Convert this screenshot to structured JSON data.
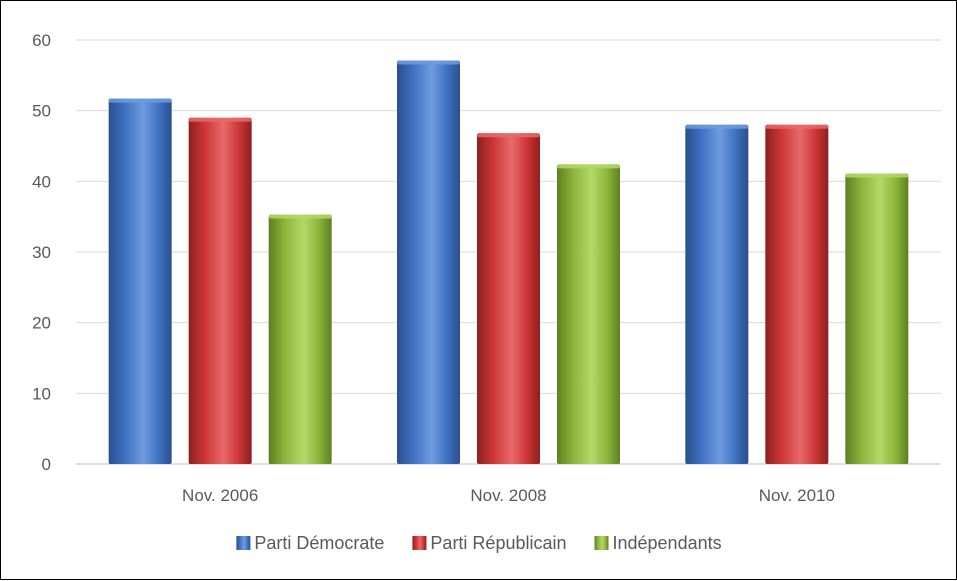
{
  "chart_data": {
    "type": "bar",
    "categories": [
      "Nov. 2006",
      "Nov. 2008",
      "Nov. 2010"
    ],
    "series": [
      {
        "name": "Parti Démocrate",
        "values": [
          51.7,
          57.1,
          48.0
        ],
        "color": "#3e71c1",
        "color_light": "#6f9be0",
        "color_dark": "#2a4f8c"
      },
      {
        "name": "Parti Républicain",
        "values": [
          49.0,
          46.8,
          48.0
        ],
        "color": "#cc3535",
        "color_light": "#e86a6a",
        "color_dark": "#8e1f1f"
      },
      {
        "name": "Indépendants",
        "values": [
          35.3,
          42.4,
          41.1
        ],
        "color": "#8cb43a",
        "color_light": "#b4d868",
        "color_dark": "#5f7f22"
      }
    ],
    "ylim": [
      0,
      60
    ],
    "yticks": [
      0,
      10,
      20,
      30,
      40,
      50,
      60
    ],
    "grid": true,
    "legend": "bottom"
  }
}
